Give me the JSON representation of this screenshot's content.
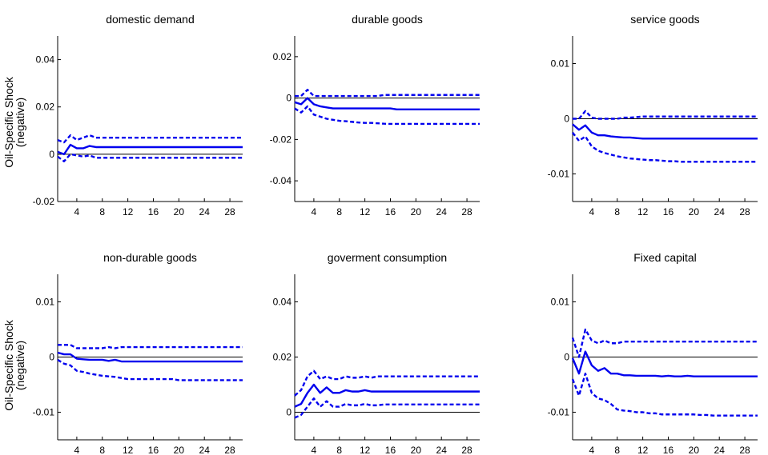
{
  "figure": {
    "row_ylabel_line1": "Oil-Specific Shock",
    "row_ylabel_line2": "(negative)"
  },
  "chart_data": [
    {
      "type": "line",
      "title": "domestic demand",
      "xlabel": "",
      "ylabel": "",
      "xlim": [
        1,
        30
      ],
      "ylim": [
        -0.02,
        0.05
      ],
      "xticks": [
        4,
        8,
        12,
        16,
        20,
        24,
        28
      ],
      "yticks": [
        -0.02,
        0,
        0.02,
        0.04
      ],
      "ytick_labels": [
        "-0.02",
        "0",
        "0.02",
        "0.04"
      ],
      "grid": false,
      "zero_line": true,
      "x": [
        1,
        2,
        3,
        4,
        5,
        6,
        7,
        8,
        9,
        10,
        11,
        12,
        13,
        14,
        15,
        16,
        17,
        18,
        19,
        20,
        21,
        22,
        23,
        24,
        25,
        26,
        27,
        28,
        29,
        30
      ],
      "series": [
        {
          "role": "response",
          "color": "#0000ee",
          "style": "solid",
          "values": [
            0.001,
            0.0,
            0.004,
            0.0025,
            0.0025,
            0.0035,
            0.003,
            0.003,
            0.003,
            0.003,
            0.003,
            0.003,
            0.003,
            0.003,
            0.003,
            0.003,
            0.003,
            0.003,
            0.003,
            0.003,
            0.003,
            0.003,
            0.003,
            0.003,
            0.003,
            0.003,
            0.003,
            0.003,
            0.003,
            0.003
          ]
        },
        {
          "role": "upper band",
          "color": "#0000ee",
          "style": "dashed",
          "values": [
            0.006,
            0.005,
            0.008,
            0.006,
            0.007,
            0.008,
            0.007,
            0.007,
            0.007,
            0.007,
            0.007,
            0.007,
            0.007,
            0.007,
            0.007,
            0.007,
            0.007,
            0.007,
            0.007,
            0.007,
            0.007,
            0.007,
            0.007,
            0.007,
            0.007,
            0.007,
            0.007,
            0.007,
            0.007,
            0.007
          ]
        },
        {
          "role": "lower band",
          "color": "#0000ee",
          "style": "dashed",
          "values": [
            -0.001,
            -0.003,
            0.0,
            -0.0005,
            -0.001,
            -0.0005,
            -0.0015,
            -0.0015,
            -0.0015,
            -0.0015,
            -0.0015,
            -0.0015,
            -0.0015,
            -0.0015,
            -0.0015,
            -0.0015,
            -0.0015,
            -0.0015,
            -0.0015,
            -0.0015,
            -0.0015,
            -0.0015,
            -0.0015,
            -0.0015,
            -0.0015,
            -0.0015,
            -0.0015,
            -0.0015,
            -0.0015,
            -0.0015
          ]
        }
      ]
    },
    {
      "type": "line",
      "title": "durable goods",
      "xlabel": "",
      "ylabel": "",
      "xlim": [
        1,
        30
      ],
      "ylim": [
        -0.05,
        0.03
      ],
      "xticks": [
        4,
        8,
        12,
        16,
        20,
        24,
        28
      ],
      "yticks": [
        -0.04,
        -0.02,
        0,
        0.02
      ],
      "ytick_labels": [
        "-0.04",
        "-0.02",
        "0",
        "0.02"
      ],
      "grid": false,
      "zero_line": true,
      "x": [
        1,
        2,
        3,
        4,
        5,
        6,
        7,
        8,
        9,
        10,
        11,
        12,
        13,
        14,
        15,
        16,
        17,
        18,
        19,
        20,
        21,
        22,
        23,
        24,
        25,
        26,
        27,
        28,
        29,
        30
      ],
      "series": [
        {
          "role": "response",
          "color": "#0000ee",
          "style": "solid",
          "values": [
            -0.002,
            -0.003,
            0.0,
            -0.003,
            -0.004,
            -0.0045,
            -0.005,
            -0.005,
            -0.005,
            -0.005,
            -0.005,
            -0.005,
            -0.005,
            -0.005,
            -0.005,
            -0.005,
            -0.0055,
            -0.0055,
            -0.0055,
            -0.0055,
            -0.0055,
            -0.0055,
            -0.0055,
            -0.0055,
            -0.0055,
            -0.0055,
            -0.0055,
            -0.0055,
            -0.0055,
            -0.0055
          ]
        },
        {
          "role": "upper band",
          "color": "#0000ee",
          "style": "dashed",
          "values": [
            0.001,
            0.001,
            0.004,
            0.001,
            0.001,
            0.001,
            0.001,
            0.001,
            0.001,
            0.001,
            0.001,
            0.001,
            0.001,
            0.001,
            0.0015,
            0.0015,
            0.0015,
            0.0015,
            0.0015,
            0.0015,
            0.0015,
            0.0015,
            0.0015,
            0.0015,
            0.0015,
            0.0015,
            0.0015,
            0.0015,
            0.0015,
            0.0015
          ]
        },
        {
          "role": "lower band",
          "color": "#0000ee",
          "style": "dashed",
          "values": [
            -0.005,
            -0.007,
            -0.004,
            -0.008,
            -0.009,
            -0.01,
            -0.0105,
            -0.011,
            -0.0112,
            -0.0115,
            -0.0118,
            -0.012,
            -0.012,
            -0.0122,
            -0.0124,
            -0.0125,
            -0.0125,
            -0.0125,
            -0.0125,
            -0.0125,
            -0.0125,
            -0.0125,
            -0.0125,
            -0.0125,
            -0.0125,
            -0.0125,
            -0.0125,
            -0.0125,
            -0.0125,
            -0.0125
          ]
        }
      ]
    },
    {
      "type": "line",
      "title": "service goods",
      "xlabel": "",
      "ylabel": "",
      "xlim": [
        1,
        30
      ],
      "ylim": [
        -0.015,
        0.015
      ],
      "xticks": [
        4,
        8,
        12,
        16,
        20,
        24,
        28
      ],
      "yticks": [
        -0.01,
        0,
        0.01
      ],
      "ytick_labels": [
        "-0.01",
        "0",
        "0.01"
      ],
      "grid": false,
      "zero_line": true,
      "x": [
        1,
        2,
        3,
        4,
        5,
        6,
        7,
        8,
        9,
        10,
        11,
        12,
        13,
        14,
        15,
        16,
        17,
        18,
        19,
        20,
        21,
        22,
        23,
        24,
        25,
        26,
        27,
        28,
        29,
        30
      ],
      "series": [
        {
          "role": "response",
          "color": "#0000ee",
          "style": "solid",
          "values": [
            -0.001,
            -0.002,
            -0.0012,
            -0.0025,
            -0.003,
            -0.003,
            -0.0032,
            -0.0033,
            -0.0034,
            -0.0034,
            -0.0035,
            -0.0036,
            -0.0036,
            -0.0036,
            -0.0036,
            -0.0036,
            -0.0036,
            -0.0036,
            -0.0036,
            -0.0036,
            -0.0036,
            -0.0036,
            -0.0036,
            -0.0036,
            -0.0036,
            -0.0036,
            -0.0036,
            -0.0036,
            -0.0036,
            -0.0036
          ]
        },
        {
          "role": "upper band",
          "color": "#0000ee",
          "style": "dashed",
          "values": [
            0.0,
            0.0,
            0.0014,
            0.0002,
            0.0,
            0.0,
            0.0,
            0.0,
            0.0002,
            0.0002,
            0.0003,
            0.0004,
            0.0004,
            0.0004,
            0.0004,
            0.0004,
            0.0004,
            0.0004,
            0.0004,
            0.0004,
            0.0004,
            0.0004,
            0.0004,
            0.0004,
            0.0004,
            0.0004,
            0.0004,
            0.0004,
            0.0004,
            0.0004
          ]
        },
        {
          "role": "lower band",
          "color": "#0000ee",
          "style": "dashed",
          "values": [
            -0.0025,
            -0.004,
            -0.0032,
            -0.005,
            -0.0058,
            -0.0062,
            -0.0065,
            -0.0068,
            -0.007,
            -0.0072,
            -0.0073,
            -0.0074,
            -0.0075,
            -0.0075,
            -0.0076,
            -0.0077,
            -0.0077,
            -0.0078,
            -0.0078,
            -0.0078,
            -0.0078,
            -0.0078,
            -0.0078,
            -0.0078,
            -0.0078,
            -0.0078,
            -0.0078,
            -0.0078,
            -0.0078,
            -0.0078
          ]
        }
      ]
    },
    {
      "type": "line",
      "title": "non-durable goods",
      "xlabel": "",
      "ylabel": "",
      "xlim": [
        1,
        30
      ],
      "ylim": [
        -0.015,
        0.015
      ],
      "xticks": [
        4,
        8,
        12,
        16,
        20,
        24,
        28
      ],
      "yticks": [
        -0.01,
        0,
        0.01
      ],
      "ytick_labels": [
        "-0.01",
        "0",
        "0.01"
      ],
      "grid": false,
      "zero_line": true,
      "x": [
        1,
        2,
        3,
        4,
        5,
        6,
        7,
        8,
        9,
        10,
        11,
        12,
        13,
        14,
        15,
        16,
        17,
        18,
        19,
        20,
        21,
        22,
        23,
        24,
        25,
        26,
        27,
        28,
        29,
        30
      ],
      "series": [
        {
          "role": "response",
          "color": "#0000ee",
          "style": "solid",
          "values": [
            0.0008,
            0.0005,
            0.0005,
            -0.0003,
            -0.0004,
            -0.0005,
            -0.0005,
            -0.0005,
            -0.0007,
            -0.0005,
            -0.0008,
            -0.0008,
            -0.0008,
            -0.0008,
            -0.0008,
            -0.0008,
            -0.0008,
            -0.0008,
            -0.0008,
            -0.0008,
            -0.0008,
            -0.0008,
            -0.0008,
            -0.0008,
            -0.0008,
            -0.0008,
            -0.0008,
            -0.0008,
            -0.0008,
            -0.0008
          ]
        },
        {
          "role": "upper band",
          "color": "#0000ee",
          "style": "dashed",
          "values": [
            0.0022,
            0.0022,
            0.0022,
            0.0016,
            0.0016,
            0.0016,
            0.0016,
            0.0016,
            0.0018,
            0.0016,
            0.0018,
            0.0018,
            0.0018,
            0.0018,
            0.0018,
            0.0018,
            0.0018,
            0.0018,
            0.0018,
            0.0018,
            0.0018,
            0.0018,
            0.0018,
            0.0018,
            0.0018,
            0.0018,
            0.0018,
            0.0018,
            0.0018,
            0.0018
          ]
        },
        {
          "role": "lower band",
          "color": "#0000ee",
          "style": "dashed",
          "values": [
            -0.0005,
            -0.0012,
            -0.0015,
            -0.0025,
            -0.0027,
            -0.003,
            -0.0032,
            -0.0034,
            -0.0035,
            -0.0036,
            -0.0038,
            -0.004,
            -0.004,
            -0.004,
            -0.004,
            -0.004,
            -0.004,
            -0.004,
            -0.004,
            -0.0042,
            -0.0042,
            -0.0042,
            -0.0042,
            -0.0042,
            -0.0042,
            -0.0042,
            -0.0042,
            -0.0042,
            -0.0042,
            -0.0042
          ]
        }
      ]
    },
    {
      "type": "line",
      "title": "goverment consumption",
      "xlabel": "",
      "ylabel": "",
      "xlim": [
        1,
        30
      ],
      "ylim": [
        -0.01,
        0.05
      ],
      "xticks": [
        4,
        8,
        12,
        16,
        20,
        24,
        28
      ],
      "yticks": [
        0,
        0.02,
        0.04
      ],
      "ytick_labels": [
        "0",
        "0.02",
        "0.04"
      ],
      "grid": false,
      "zero_line": true,
      "x": [
        1,
        2,
        3,
        4,
        5,
        6,
        7,
        8,
        9,
        10,
        11,
        12,
        13,
        14,
        15,
        16,
        17,
        18,
        19,
        20,
        21,
        22,
        23,
        24,
        25,
        26,
        27,
        28,
        29,
        30
      ],
      "series": [
        {
          "role": "response",
          "color": "#0000ee",
          "style": "solid",
          "values": [
            0.002,
            0.003,
            0.007,
            0.01,
            0.007,
            0.009,
            0.007,
            0.007,
            0.008,
            0.0075,
            0.0075,
            0.008,
            0.0075,
            0.0075,
            0.0075,
            0.0075,
            0.0075,
            0.0075,
            0.0075,
            0.0075,
            0.0075,
            0.0075,
            0.0075,
            0.0075,
            0.0075,
            0.0075,
            0.0075,
            0.0075,
            0.0075,
            0.0075
          ]
        },
        {
          "role": "upper band",
          "color": "#0000ee",
          "style": "dashed",
          "values": [
            0.006,
            0.008,
            0.013,
            0.015,
            0.012,
            0.013,
            0.012,
            0.012,
            0.013,
            0.0125,
            0.0125,
            0.013,
            0.0125,
            0.013,
            0.013,
            0.013,
            0.013,
            0.013,
            0.013,
            0.013,
            0.013,
            0.013,
            0.013,
            0.013,
            0.013,
            0.013,
            0.013,
            0.013,
            0.013,
            0.013
          ]
        },
        {
          "role": "lower band",
          "color": "#0000ee",
          "style": "dashed",
          "values": [
            -0.002,
            -0.001,
            0.002,
            0.005,
            0.002,
            0.004,
            0.002,
            0.002,
            0.003,
            0.0025,
            0.0025,
            0.003,
            0.0025,
            0.0025,
            0.0028,
            0.0028,
            0.0028,
            0.0028,
            0.0028,
            0.0028,
            0.0028,
            0.0028,
            0.0028,
            0.0028,
            0.0028,
            0.0028,
            0.0028,
            0.0028,
            0.0028,
            0.0028
          ]
        }
      ]
    },
    {
      "type": "line",
      "title": "Fixed capital",
      "xlabel": "",
      "ylabel": "",
      "xlim": [
        1,
        30
      ],
      "ylim": [
        -0.015,
        0.015
      ],
      "xticks": [
        4,
        8,
        12,
        16,
        20,
        24,
        28
      ],
      "yticks": [
        -0.01,
        0,
        0.01
      ],
      "ytick_labels": [
        "-0.01",
        "0",
        "0.01"
      ],
      "grid": false,
      "zero_line": true,
      "x": [
        1,
        2,
        3,
        4,
        5,
        6,
        7,
        8,
        9,
        10,
        11,
        12,
        13,
        14,
        15,
        16,
        17,
        18,
        19,
        20,
        21,
        22,
        23,
        24,
        25,
        26,
        27,
        28,
        29,
        30
      ],
      "series": [
        {
          "role": "response",
          "color": "#0000ee",
          "style": "solid",
          "values": [
            -0.0002,
            -0.003,
            0.001,
            -0.0015,
            -0.0025,
            -0.002,
            -0.003,
            -0.003,
            -0.0033,
            -0.0033,
            -0.0034,
            -0.0034,
            -0.0034,
            -0.0034,
            -0.0035,
            -0.0034,
            -0.0035,
            -0.0035,
            -0.0034,
            -0.0035,
            -0.0035,
            -0.0035,
            -0.0035,
            -0.0035,
            -0.0035,
            -0.0035,
            -0.0035,
            -0.0035,
            -0.0035,
            -0.0035
          ]
        },
        {
          "role": "upper band",
          "color": "#0000ee",
          "style": "dashed",
          "values": [
            0.0035,
            0.0,
            0.005,
            0.003,
            0.0025,
            0.003,
            0.0025,
            0.0025,
            0.0028,
            0.0028,
            0.0028,
            0.0028,
            0.0028,
            0.0028,
            0.0028,
            0.0028,
            0.0028,
            0.0028,
            0.0028,
            0.0028,
            0.0028,
            0.0028,
            0.0028,
            0.0028,
            0.0028,
            0.0028,
            0.0028,
            0.0028,
            0.0028,
            0.0028
          ]
        },
        {
          "role": "lower band",
          "color": "#0000ee",
          "style": "dashed",
          "values": [
            -0.004,
            -0.007,
            -0.003,
            -0.0065,
            -0.0075,
            -0.0078,
            -0.0085,
            -0.0095,
            -0.0097,
            -0.0098,
            -0.01,
            -0.01,
            -0.0102,
            -0.0102,
            -0.0104,
            -0.0104,
            -0.0104,
            -0.0104,
            -0.0104,
            -0.0104,
            -0.0105,
            -0.0105,
            -0.0106,
            -0.0106,
            -0.0106,
            -0.0106,
            -0.0106,
            -0.0106,
            -0.0106,
            -0.0106
          ]
        }
      ]
    }
  ]
}
